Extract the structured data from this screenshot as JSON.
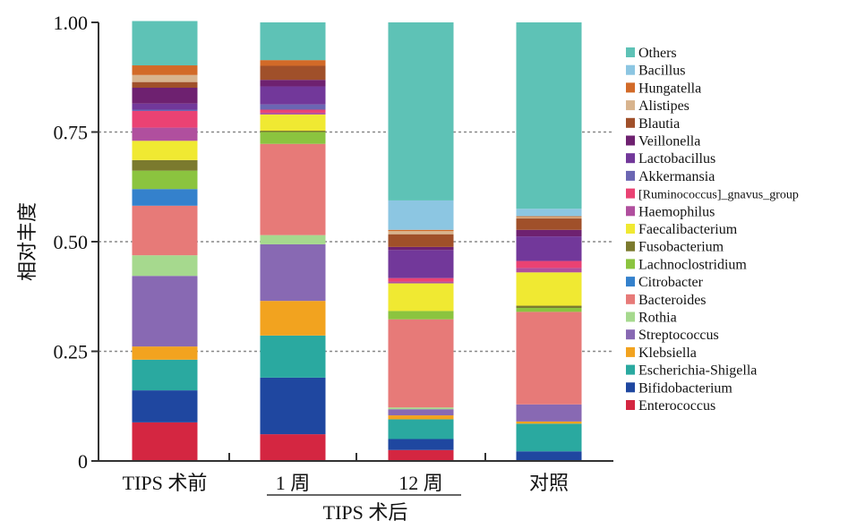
{
  "chart_data": {
    "type": "bar",
    "stacked": true,
    "title": "",
    "ylabel": "相对丰度",
    "xlabel": "",
    "ylim": [
      0,
      1
    ],
    "yticks": [
      "0",
      "0.25",
      "0.50",
      "0.75",
      "1.00"
    ],
    "ytick_values": [
      0,
      0.25,
      0.5,
      0.75,
      1.0
    ],
    "grid": "horizontal dashed at 0.25, 0.50, 0.75",
    "categories": [
      "TIPS 术前",
      "1 周",
      "12 周",
      "对照"
    ],
    "group_label": "TIPS 术后",
    "legend_position": "right",
    "series": [
      {
        "name": "Enterococcus",
        "color": "#d42641",
        "values": [
          0.088,
          0.061,
          0.025,
          0.0
        ]
      },
      {
        "name": "Bifidobacterium",
        "color": "#1f47a0",
        "values": [
          0.073,
          0.129,
          0.025,
          0.022
        ]
      },
      {
        "name": "Escherichia-Shigella",
        "color": "#2aa9a0",
        "values": [
          0.07,
          0.096,
          0.045,
          0.063
        ]
      },
      {
        "name": "Klebsiella",
        "color": "#f2a31f",
        "values": [
          0.03,
          0.079,
          0.009,
          0.005
        ]
      },
      {
        "name": "Streptococcus",
        "color": "#8869b3",
        "values": [
          0.161,
          0.129,
          0.014,
          0.039
        ]
      },
      {
        "name": "Rothia",
        "color": "#a6d98e",
        "values": [
          0.047,
          0.021,
          0.004,
          0.0
        ]
      },
      {
        "name": "Bacteroides",
        "color": "#e77a78",
        "values": [
          0.113,
          0.208,
          0.201,
          0.211
        ]
      },
      {
        "name": "Citrobacter",
        "color": "#3481cc",
        "values": [
          0.038,
          0.0,
          0.0,
          0.0
        ]
      },
      {
        "name": "Lachnoclostridium",
        "color": "#8bc43f",
        "values": [
          0.042,
          0.027,
          0.019,
          0.009
        ]
      },
      {
        "name": "Fusobacterium",
        "color": "#7b7a2e",
        "values": [
          0.024,
          0.003,
          0.0,
          0.005
        ]
      },
      {
        "name": "Faecalibacterium",
        "color": "#f0e932",
        "values": [
          0.044,
          0.037,
          0.063,
          0.076
        ]
      },
      {
        "name": "Haemophilus",
        "color": "#b04f9e",
        "values": [
          0.03,
          0.004,
          0.004,
          0.01
        ]
      },
      {
        "name": "[Ruminococcus]_gnavus_group",
        "color": "#ea4273",
        "values": [
          0.038,
          0.007,
          0.008,
          0.016
        ]
      },
      {
        "name": "Akkermansia",
        "color": "#6b66b3",
        "values": [
          0.003,
          0.012,
          0.0,
          0.0
        ]
      },
      {
        "name": "Lactobacillus",
        "color": "#72389a",
        "values": [
          0.014,
          0.041,
          0.064,
          0.056
        ]
      },
      {
        "name": "Veillonella",
        "color": "#6e2170",
        "values": [
          0.036,
          0.015,
          0.007,
          0.015
        ]
      },
      {
        "name": "Blautia",
        "color": "#a0502a",
        "values": [
          0.013,
          0.032,
          0.029,
          0.026
        ]
      },
      {
        "name": "Alistipes",
        "color": "#d8b48e",
        "values": [
          0.016,
          0.0,
          0.007,
          0.003
        ]
      },
      {
        "name": "Hungatella",
        "color": "#d26a28",
        "values": [
          0.022,
          0.013,
          0.003,
          0.002
        ]
      },
      {
        "name": "Bacillus",
        "color": "#8cc6e2",
        "values": [
          0.0,
          0.0,
          0.067,
          0.017
        ]
      },
      {
        "name": "Others",
        "color": "#5ec2b6",
        "values": [
          0.101,
          0.086,
          0.406,
          0.425
        ]
      }
    ]
  }
}
